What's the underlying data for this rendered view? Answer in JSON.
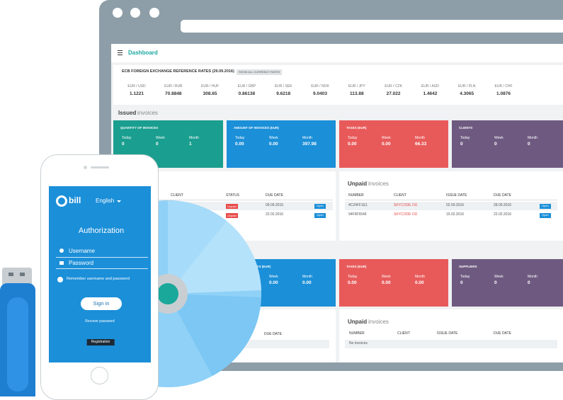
{
  "browser": {
    "page_title": "Dashboard"
  },
  "rates": {
    "title": "ECB FOREIGN EXCHANGE REFERENCE RATES (29.09.2016)",
    "button": "SHOW ALL CURRENCY RATES",
    "items": [
      {
        "pair": "EUR / USD",
        "rate": "1.1221"
      },
      {
        "pair": "EUR / RUB",
        "rate": "70.8848"
      },
      {
        "pair": "EUR / HUF",
        "rate": "308.65"
      },
      {
        "pair": "EUR / GBP",
        "rate": "0.86138"
      },
      {
        "pair": "EUR / SEK",
        "rate": "9.6218"
      },
      {
        "pair": "EUR / NOK",
        "rate": "9.0403"
      },
      {
        "pair": "EUR / JPY",
        "rate": "113.88"
      },
      {
        "pair": "EUR / CZK",
        "rate": "27.022"
      },
      {
        "pair": "EUR / AUD",
        "rate": "1.4642"
      },
      {
        "pair": "EUR / PLN",
        "rate": "4.3065"
      },
      {
        "pair": "EUR / CHF",
        "rate": "1.0876"
      }
    ]
  },
  "issued_heading": {
    "strong": "Issued",
    "light": "invoices"
  },
  "top_cards": [
    {
      "title": "QUANTITY OF INVOICES",
      "color": "#1a9e8f",
      "periods": [
        "Today",
        "Week",
        "Month"
      ],
      "values": [
        "0",
        "0",
        "1"
      ]
    },
    {
      "title": "AMOUNT OF INVOICES (EUR)",
      "color": "#1b8fd8",
      "periods": [
        "Today",
        "Week",
        "Month"
      ],
      "values": [
        "0.00",
        "0.00",
        "397.98"
      ]
    },
    {
      "title": "TAXES (EUR)",
      "color": "#e85a5a",
      "periods": [
        "Today",
        "Week",
        "Month"
      ],
      "values": [
        "0.00",
        "0.00",
        "66.33"
      ]
    },
    {
      "title": "CLIENTS",
      "color": "#6e5a80",
      "periods": [
        "Today",
        "Week",
        "Month"
      ],
      "values": [
        "0",
        "0",
        "0"
      ]
    }
  ],
  "paid_panel": {
    "columns": [
      "CLIENT",
      "STATUS",
      "DUE DATE"
    ],
    "rows": [
      {
        "status": "Unpaid",
        "due": "09.09.2016",
        "action": "Open"
      },
      {
        "status": "Unpaid",
        "due": "22.02.2016",
        "action": "Open"
      }
    ]
  },
  "unpaid_panel": {
    "title_strong": "Unpaid",
    "title_light": "invoices",
    "columns": [
      "NUMBER",
      "CLIENT",
      "ISSUE DATE",
      "DUE DATE"
    ],
    "rows": [
      {
        "number": "4C24FF1E1",
        "client": "SKYCODE OÜ",
        "issue": "02.09.2016",
        "due": "28.09.2016",
        "action": "Open"
      },
      {
        "number": "94F9F5546",
        "client": "SKYCODE OÜ",
        "issue": "15.02.2016",
        "due": "22.02.2016",
        "action": "Open"
      }
    ]
  },
  "bottom_cards": [
    {
      "title": "ICES (EUR)",
      "color": "#1b8fd8",
      "periods": [
        "Week",
        "Month"
      ],
      "values": [
        "0.00",
        "0.00"
      ]
    },
    {
      "title": "TAXES (EUR)",
      "color": "#e85a5a",
      "periods": [
        "Today",
        "Week",
        "Month"
      ],
      "values": [
        "0.00",
        "0.00",
        "0.00"
      ]
    },
    {
      "title": "SUPPLIERS",
      "color": "#6e5a80",
      "periods": [
        "Today",
        "Week",
        "Month"
      ],
      "values": [
        "0",
        "0",
        "0"
      ]
    }
  ],
  "bottom_left": {
    "columns": [
      "DUE DATE"
    ]
  },
  "bottom_right": {
    "title_strong": "Unpaid",
    "title_light": "invoices",
    "columns": [
      "NUMBER",
      "CLIENT",
      "ISSUE DATE",
      "DUE DATE"
    ],
    "empty": "No invoices"
  },
  "phone": {
    "logo": "bill",
    "language": "English",
    "heading": "Authorization",
    "username": "Username",
    "password": "Password",
    "remember": "Remember username and password",
    "sign_in": "Sign in",
    "recover": "Recover password",
    "register": "Registration"
  }
}
